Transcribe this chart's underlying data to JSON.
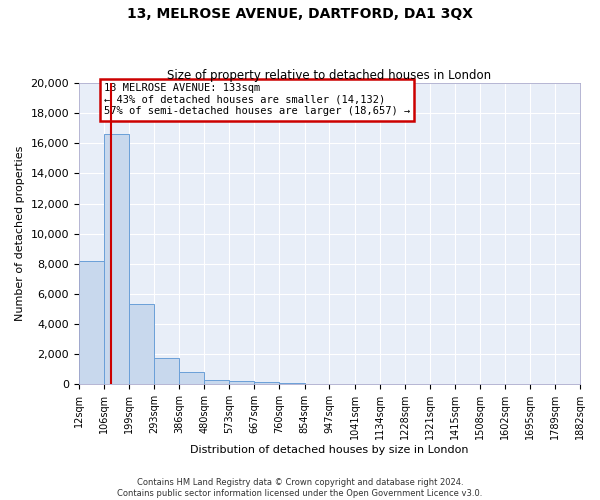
{
  "title": "13, MELROSE AVENUE, DARTFORD, DA1 3QX",
  "subtitle": "Size of property relative to detached houses in London",
  "xlabel": "Distribution of detached houses by size in London",
  "ylabel": "Number of detached properties",
  "bar_color": "#c8d8ed",
  "bar_edge_color": "#6a9fd8",
  "plot_bg_color": "#e8eef8",
  "fig_bg_color": "#ffffff",
  "grid_color": "#ffffff",
  "vline_x": 133,
  "vline_color": "#cc0000",
  "annotation_title": "13 MELROSE AVENUE: 133sqm",
  "annotation_line1": "← 43% of detached houses are smaller (14,132)",
  "annotation_line2": "57% of semi-detached houses are larger (18,657) →",
  "bin_edges": [
    12,
    106,
    199,
    293,
    386,
    480,
    573,
    667,
    760,
    854,
    947,
    1041,
    1134,
    1228,
    1321,
    1415,
    1508,
    1602,
    1695,
    1789,
    1882
  ],
  "bin_heights": [
    8200,
    16600,
    5300,
    1750,
    800,
    300,
    200,
    120,
    90,
    0,
    0,
    0,
    0,
    0,
    0,
    0,
    0,
    0,
    0,
    0
  ],
  "ylim": [
    0,
    20000
  ],
  "yticks": [
    0,
    2000,
    4000,
    6000,
    8000,
    10000,
    12000,
    14000,
    16000,
    18000,
    20000
  ],
  "footer1": "Contains HM Land Registry data © Crown copyright and database right 2024.",
  "footer2": "Contains public sector information licensed under the Open Government Licence v3.0."
}
